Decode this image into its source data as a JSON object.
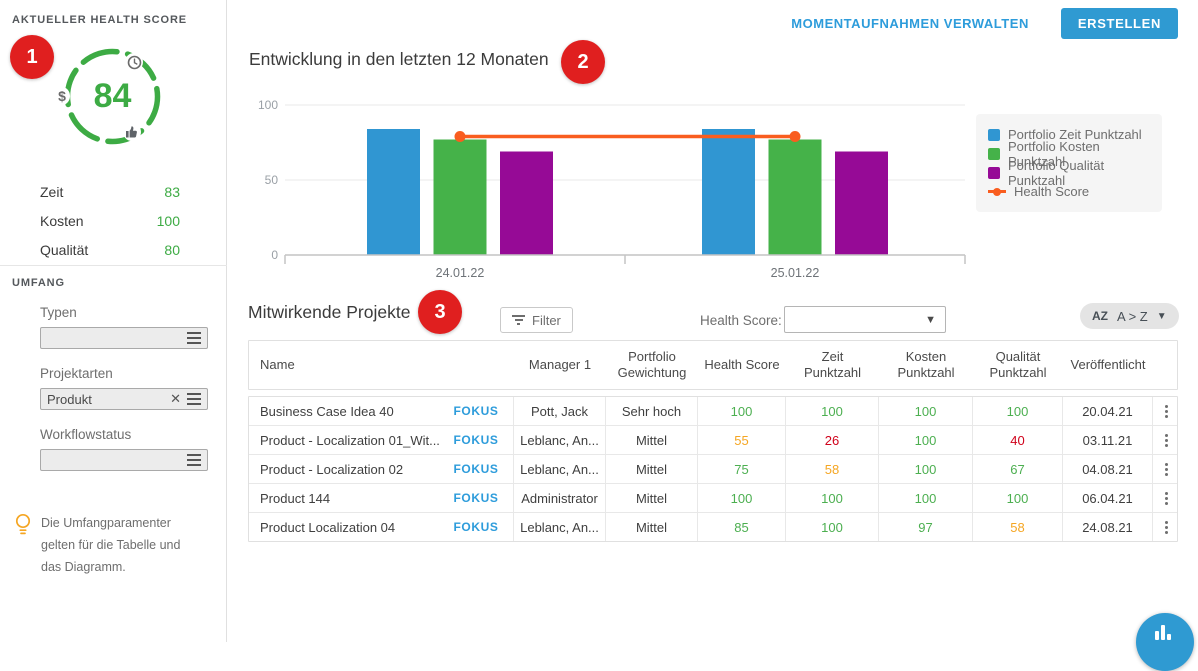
{
  "annotations": {
    "one": "1",
    "two": "2",
    "three": "3"
  },
  "colors": {
    "green": "#3dab44",
    "bar_blue": "#3096d2",
    "bar_green": "#45b249",
    "bar_purple": "#960a96",
    "line_orange": "#f95d1f",
    "link_blue": "#2d9cdb",
    "callout_red": "#e01f1f"
  },
  "sidebar": {
    "health_title": "AKTUELLER HEALTH SCORE",
    "score": "84",
    "metrics": [
      {
        "label": "Zeit",
        "value": "83"
      },
      {
        "label": "Kosten",
        "value": "100"
      },
      {
        "label": "Qualität",
        "value": "80"
      }
    ],
    "scope_title": "UMFANG",
    "filters": [
      {
        "label": "Typen",
        "value": "",
        "clearable": false
      },
      {
        "label": "Projektarten",
        "value": "Produkt",
        "clearable": true
      },
      {
        "label": "Workflowstatus",
        "value": "",
        "clearable": false
      }
    ],
    "note": "Die Umfangparamenter gelten für die Tabelle und das Diagramm."
  },
  "header": {
    "manage_link": "MOMENTAUFNAHMEN VERWALTEN",
    "create_button": "ERSTELLEN"
  },
  "chart_data": {
    "type": "bar",
    "title": "Entwicklung in den letzten 12 Monaten",
    "categories": [
      "24.01.22",
      "25.01.22"
    ],
    "series": [
      {
        "name": "Portfolio Zeit Punktzahl",
        "color": "#3096d2",
        "values": [
          84,
          84
        ]
      },
      {
        "name": "Portfolio Kosten Punktzahl",
        "color": "#45b249",
        "values": [
          77,
          77
        ]
      },
      {
        "name": "Portfolio Qualität Punktzahl",
        "color": "#960a96",
        "values": [
          69,
          69
        ]
      }
    ],
    "line_series": {
      "name": "Health Score",
      "color": "#f95d1f",
      "values": [
        79,
        79
      ]
    },
    "ylim": [
      0,
      100
    ],
    "yticks": [
      0,
      50,
      100
    ],
    "grid": "horizontal",
    "legend_position": "right"
  },
  "table": {
    "title": "Mitwirkende Projekte",
    "filter_button": "Filter",
    "health_score_filter_label": "Health Score:",
    "health_score_filter_value": "",
    "sort_icon_label": "AZ",
    "sort_label": "A > Z",
    "focus_label": "FOKUS",
    "columns": [
      "Name",
      "Manager 1",
      "Portfolio Gewichtung",
      "Health Score",
      "Zeit Punktzahl",
      "Kosten Punktzahl",
      "Qualität Punktzahl",
      "Veröffentlicht"
    ],
    "rows": [
      {
        "name": "Business Case Idea 40",
        "manager": "Pott, Jack",
        "weight": "Sehr hoch",
        "scores": [
          {
            "v": "100",
            "c": "g"
          },
          {
            "v": "100",
            "c": "g"
          },
          {
            "v": "100",
            "c": "g"
          },
          {
            "v": "100",
            "c": "g"
          }
        ],
        "published": "20.04.21"
      },
      {
        "name": "Product - Localization 01_Wit...",
        "manager": "Leblanc, An...",
        "weight": "Mittel",
        "scores": [
          {
            "v": "55",
            "c": "o"
          },
          {
            "v": "26",
            "c": "r"
          },
          {
            "v": "100",
            "c": "g"
          },
          {
            "v": "40",
            "c": "r"
          }
        ],
        "published": "03.11.21"
      },
      {
        "name": "Product - Localization 02",
        "manager": "Leblanc, An...",
        "weight": "Mittel",
        "scores": [
          {
            "v": "75",
            "c": "g"
          },
          {
            "v": "58",
            "c": "o"
          },
          {
            "v": "100",
            "c": "g"
          },
          {
            "v": "67",
            "c": "g"
          }
        ],
        "published": "04.08.21"
      },
      {
        "name": "Product 144",
        "manager": "Administrator",
        "weight": "Mittel",
        "scores": [
          {
            "v": "100",
            "c": "g"
          },
          {
            "v": "100",
            "c": "g"
          },
          {
            "v": "100",
            "c": "g"
          },
          {
            "v": "100",
            "c": "g"
          }
        ],
        "published": "06.04.21"
      },
      {
        "name": "Product Localization 04",
        "manager": "Leblanc, An...",
        "weight": "Mittel",
        "scores": [
          {
            "v": "85",
            "c": "g"
          },
          {
            "v": "100",
            "c": "g"
          },
          {
            "v": "97",
            "c": "g"
          },
          {
            "v": "58",
            "c": "o"
          }
        ],
        "published": "24.08.21"
      }
    ]
  }
}
